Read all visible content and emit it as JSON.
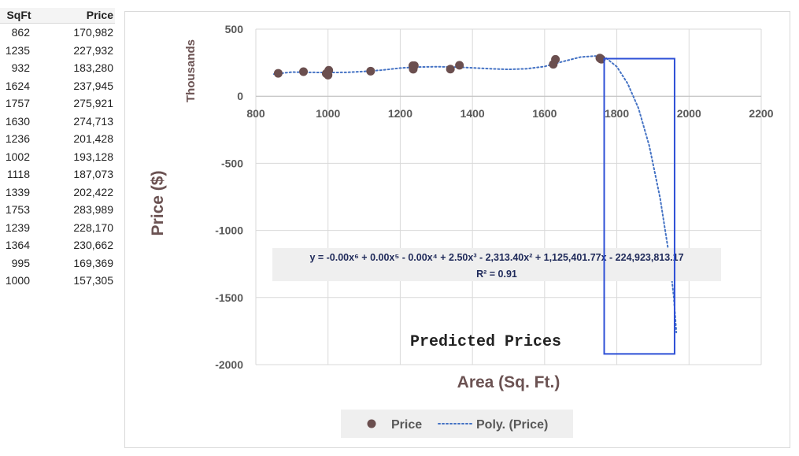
{
  "table": {
    "headers": [
      "SqFt",
      "Price"
    ],
    "rows": [
      [
        "862",
        "170,982"
      ],
      [
        "1235",
        "227,932"
      ],
      [
        "932",
        "183,280"
      ],
      [
        "1624",
        "237,945"
      ],
      [
        "1757",
        "275,921"
      ],
      [
        "1630",
        "274,713"
      ],
      [
        "1236",
        "201,428"
      ],
      [
        "1002",
        "193,128"
      ],
      [
        "1118",
        "187,073"
      ],
      [
        "1339",
        "202,422"
      ],
      [
        "1753",
        "283,989"
      ],
      [
        "1239",
        "228,170"
      ],
      [
        "1364",
        "230,662"
      ],
      [
        "995",
        "169,369"
      ],
      [
        "1000",
        "157,305"
      ]
    ]
  },
  "chart_data": {
    "type": "scatter",
    "xlabel": "Area (Sq. Ft.)",
    "ylabel": "Price ($)",
    "y_units_label": "Thousands",
    "xlim": [
      800,
      2200
    ],
    "ylim": [
      -2000,
      500
    ],
    "x_ticks": [
      800,
      1000,
      1200,
      1400,
      1600,
      1800,
      2000,
      2200
    ],
    "y_ticks": [
      500,
      0,
      -500,
      -1000,
      -1500,
      -2000
    ],
    "grid": true,
    "legend_position": "bottom",
    "series": [
      {
        "name": "Price",
        "kind": "points",
        "color": "#6b4f4f",
        "points": [
          [
            862,
            170.982
          ],
          [
            1235,
            227.932
          ],
          [
            932,
            183.28
          ],
          [
            1624,
            237.945
          ],
          [
            1757,
            275.921
          ],
          [
            1630,
            274.713
          ],
          [
            1236,
            201.428
          ],
          [
            1002,
            193.128
          ],
          [
            1118,
            187.073
          ],
          [
            1339,
            202.422
          ],
          [
            1753,
            283.989
          ],
          [
            1239,
            228.17
          ],
          [
            1364,
            230.662
          ],
          [
            995,
            169.369
          ],
          [
            1000,
            157.305
          ]
        ]
      },
      {
        "name": "Poly.  (Price)",
        "kind": "trendline",
        "color": "#4472c4",
        "points": [
          [
            850,
            165
          ],
          [
            900,
            180
          ],
          [
            950,
            178
          ],
          [
            1000,
            177
          ],
          [
            1050,
            178
          ],
          [
            1100,
            185
          ],
          [
            1150,
            195
          ],
          [
            1200,
            210
          ],
          [
            1250,
            218
          ],
          [
            1300,
            220
          ],
          [
            1350,
            218
          ],
          [
            1400,
            212
          ],
          [
            1450,
            205
          ],
          [
            1500,
            200
          ],
          [
            1550,
            205
          ],
          [
            1600,
            222
          ],
          [
            1650,
            258
          ],
          [
            1700,
            292
          ],
          [
            1740,
            300
          ],
          [
            1770,
            285
          ],
          [
            1800,
            220
          ],
          [
            1830,
            95
          ],
          [
            1860,
            -90
          ],
          [
            1890,
            -370
          ],
          [
            1920,
            -760
          ],
          [
            1945,
            -1190
          ],
          [
            1958,
            -1500
          ],
          [
            1965,
            -1760
          ]
        ]
      }
    ],
    "equation_text": "y = -0.00x⁶ + 0.00x⁵ - 0.00x⁴ + 2.50x³ - 2,313.40x² + 1,125,401.77x - 224,923,813.17",
    "r2_text": "R² = 0.91",
    "annotation": {
      "text": "Predicted Prices",
      "box_x": [
        1765,
        1960
      ],
      "box_y": [
        -1920,
        280
      ],
      "box_color": "#2d4fd6"
    }
  }
}
